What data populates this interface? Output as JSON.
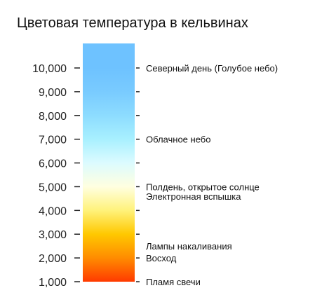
{
  "title": "Цветовая температура в кельвинах",
  "chart_data": {
    "type": "scale",
    "ticks": [
      {
        "value": 1000,
        "label": "1,000"
      },
      {
        "value": 2000,
        "label": "2,000"
      },
      {
        "value": 3000,
        "label": "3,000"
      },
      {
        "value": 4000,
        "label": "4,000"
      },
      {
        "value": 5000,
        "label": "5,000"
      },
      {
        "value": 6000,
        "label": "6,000"
      },
      {
        "value": 7000,
        "label": "7,000"
      },
      {
        "value": 8000,
        "label": "8,000"
      },
      {
        "value": 9000,
        "label": "9,000"
      },
      {
        "value": 10000,
        "label": "10,000"
      }
    ],
    "range": [
      1000,
      10000
    ],
    "gradient": [
      {
        "value": 1000,
        "color": "#ff3a00"
      },
      {
        "value": 2000,
        "color": "#ff8c00"
      },
      {
        "value": 3000,
        "color": "#ffc800"
      },
      {
        "value": 4000,
        "color": "#fff27a"
      },
      {
        "value": 5000,
        "color": "#ffffe0"
      },
      {
        "value": 6000,
        "color": "#dcfbff"
      },
      {
        "value": 7000,
        "color": "#a8f0ff"
      },
      {
        "value": 8000,
        "color": "#8ddcff"
      },
      {
        "value": 9000,
        "color": "#79cbff"
      },
      {
        "value": 10000,
        "color": "#6ec2ff"
      }
    ],
    "annotations": [
      {
        "value": 10000,
        "text": "Северный день (Голубое небо)"
      },
      {
        "value": 7000,
        "text": "Облачное небо"
      },
      {
        "value": 5000,
        "text": "Полдень, открытое солнце"
      },
      {
        "value": 4600,
        "text": "Электронная вспышка"
      },
      {
        "value": 2500,
        "text": "Лампы накаливания"
      },
      {
        "value": 2000,
        "text": "Восход"
      },
      {
        "value": 1000,
        "text": "Пламя свечи"
      }
    ]
  }
}
